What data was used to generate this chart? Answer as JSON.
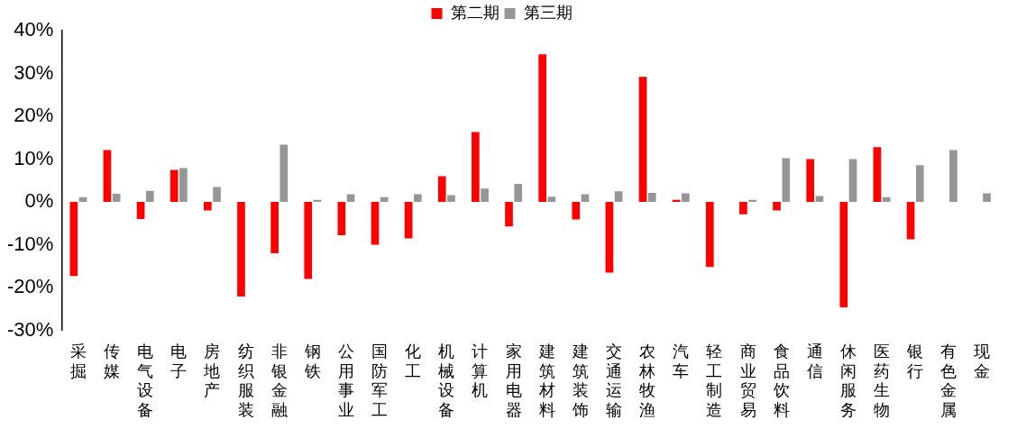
{
  "chart_data": {
    "type": "bar",
    "categories": [
      "采掘",
      "传媒",
      "电气设备",
      "电子",
      "房地产",
      "纺织服装",
      "非银金融",
      "钢铁",
      "公用事业",
      "国防军工",
      "化工",
      "机械设备",
      "计算机",
      "家用电器",
      "建筑材料",
      "建筑装饰",
      "交通运输",
      "农林牧渔",
      "汽车",
      "轻工制造",
      "商业贸易",
      "食品饮料",
      "通信",
      "休闲服务",
      "医药生物",
      "银行",
      "有色金属",
      "现金"
    ],
    "series": [
      {
        "name": "第二期",
        "color": "#ff0000",
        "values": [
          -17.3,
          12.1,
          -4.0,
          7.5,
          -2.0,
          -22.1,
          -12.0,
          -18.0,
          -7.8,
          -10.0,
          -8.5,
          6.0,
          16.3,
          -5.7,
          34.5,
          -4.1,
          -16.5,
          29.2,
          0.5,
          -15.2,
          -2.9,
          -2.0,
          10.0,
          -24.6,
          12.8,
          -8.7,
          0,
          0
        ]
      },
      {
        "name": "第三期",
        "color": "#969696",
        "values": [
          1.1,
          1.9,
          2.6,
          7.9,
          3.5,
          0,
          13.4,
          0.5,
          1.8,
          1.1,
          1.8,
          1.6,
          3.1,
          4.2,
          1.2,
          1.8,
          2.5,
          2.1,
          2.0,
          null,
          0.5,
          10.2,
          1.4,
          10.0,
          1.1,
          8.6,
          12.1,
          2.0
        ]
      }
    ],
    "ylim": [
      -30,
      40
    ],
    "yticks": [
      {
        "value": -30,
        "label": "-30%"
      },
      {
        "value": -20,
        "label": "-20%"
      },
      {
        "value": -10,
        "label": "-10%"
      },
      {
        "value": 0,
        "label": "0%"
      },
      {
        "value": 10,
        "label": "10%"
      },
      {
        "value": 20,
        "label": "20%"
      },
      {
        "value": 30,
        "label": "30%"
      },
      {
        "value": 40,
        "label": "40%"
      }
    ],
    "grid": false,
    "legend": "top"
  }
}
